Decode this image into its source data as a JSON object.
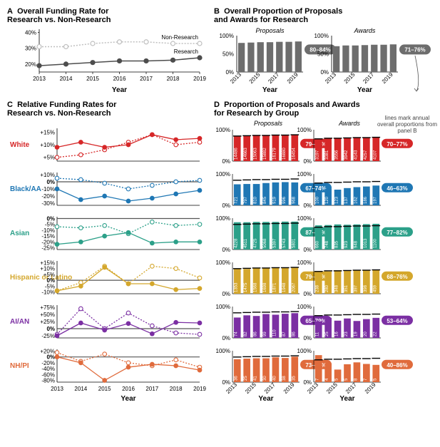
{
  "years": [
    2013,
    2014,
    2015,
    2016,
    2017,
    2018,
    2019
  ],
  "colors": {
    "research": "#4d4d4d",
    "nonresearch": "#bfbfbf",
    "bar_gray": "#6d6d6d",
    "text_gray": "#333333",
    "grid": "#e0e0e0",
    "axis": "#888888",
    "White": "#d62728",
    "BlackAA": "#1f77b4",
    "Asian": "#2ca089",
    "Hispanic": "#d4a72c",
    "AIAN": "#7b2fa3",
    "NHPI": "#e06b3c"
  },
  "panelA": {
    "title": "Overall Funding Rate for\nResearch vs. Non-Research",
    "letter": "A",
    "ylabel_ticks": [
      20,
      30,
      40
    ],
    "research": [
      19,
      20,
      21,
      22,
      22,
      22.5,
      24
    ],
    "nonresearch": [
      31,
      31,
      33,
      34,
      34,
      33,
      33
    ],
    "labels": {
      "research": "Research",
      "nonresearch": "Non-Research"
    },
    "xlabel": "Year"
  },
  "panelB": {
    "title": "Overall Proportion of Proposals\nand Awards for Research",
    "letter": "B",
    "sub": [
      "Proposals",
      "Awards"
    ],
    "proposals": [
      80,
      81,
      82,
      82,
      83,
      83,
      84
    ],
    "awards": [
      71,
      73,
      73,
      74,
      75,
      75,
      76
    ],
    "badges": [
      "80–84%",
      "71–76%"
    ],
    "xlabel": "Year"
  },
  "panelC": {
    "title": "Relative Funding Rates for\nResearch vs. Non-Research",
    "letter": "C",
    "xlabel": "Year",
    "groups": [
      {
        "name": "White",
        "color": "White",
        "ticks": [
          5,
          10,
          15
        ],
        "research": [
          9,
          11,
          9,
          10,
          14,
          12,
          12.5
        ],
        "nonresearch": [
          5,
          6,
          8,
          11,
          14,
          10,
          11
        ]
      },
      {
        "name": "Black/AA",
        "color": "BlackAA",
        "ticks": [
          -30,
          -20,
          -10,
          0,
          10
        ],
        "research": [
          -10,
          -25,
          -20,
          -27,
          -23,
          -17,
          -12
        ],
        "nonresearch": [
          5,
          3,
          -2,
          -10,
          -5,
          0,
          2
        ]
      },
      {
        "name": "Asian",
        "color": "Asian",
        "ticks": [
          -25,
          -20,
          -15,
          -10,
          -5,
          0
        ],
        "research": [
          -22,
          -20,
          -15,
          -12,
          -21,
          -20,
          -20
        ],
        "nonresearch": [
          -7,
          -8,
          -6,
          -13,
          -3,
          -6,
          -5
        ]
      },
      {
        "name": "Hispanic or Latino",
        "color": "Hispanic",
        "ticks": [
          -10,
          -5,
          0,
          5,
          10,
          15
        ],
        "research": [
          -9,
          -5,
          11,
          -3,
          -3,
          -8,
          -7
        ],
        "nonresearch": [
          -9,
          -2,
          12,
          -3,
          12,
          10,
          2
        ]
      },
      {
        "name": "AI/AN",
        "color": "AIAN",
        "ticks": [
          -25,
          0,
          25,
          50,
          75
        ],
        "research": [
          -25,
          20,
          -5,
          18,
          -18,
          22,
          20
        ],
        "nonresearch": [
          -20,
          70,
          0,
          55,
          10,
          -15,
          -20
        ]
      },
      {
        "name": "NH/PI",
        "color": "NHPI",
        "ticks": [
          -80,
          -60,
          -40,
          -20,
          0,
          20
        ],
        "research": [
          0,
          -20,
          -80,
          -35,
          -25,
          -30,
          -45
        ],
        "nonresearch": [
          15,
          -15,
          10,
          -20,
          -30,
          -10,
          -35
        ]
      }
    ]
  },
  "panelD": {
    "title": "Proportion of Proposals and Awards\nfor Research by Group",
    "letter": "D",
    "sub": [
      "Proposals",
      "Awards"
    ],
    "xlabel": "Year",
    "note": "lines mark annual overall proportions from panel B",
    "groups": [
      {
        "color": "White",
        "badges": [
          "79–84%",
          "70–77%"
        ],
        "proposals": {
          "vals": [
            79,
            80,
            81,
            82,
            83,
            83,
            84
          ],
          "n": [
            "14486",
            "14663",
            "15063",
            "15882",
            "16179",
            "16880",
            "16454"
          ]
        },
        "awards": {
          "vals": [
            70,
            72,
            73,
            74,
            75,
            76,
            77
          ],
          "n": [
            "3197",
            "3381",
            "3556",
            "3942",
            "4143",
            "4257",
            "4107"
          ]
        }
      },
      {
        "color": "BlackAA",
        "badges": [
          "67–74%",
          "46–63%"
        ],
        "proposals": {
          "vals": [
            67,
            68,
            68,
            71,
            73,
            74,
            73
          ],
          "n": [
            "721",
            "797",
            "810",
            "845",
            "919",
            "996",
            "968"
          ]
        },
        "awards": {
          "vals": [
            46,
            53,
            50,
            55,
            58,
            60,
            63
          ],
          "n": [
            "100",
            "120",
            "123",
            "137",
            "162",
            "186",
            "197"
          ]
        }
      },
      {
        "color": "Asian",
        "badges": [
          "87–89%",
          "77–82%"
        ],
        "proposals": {
          "vals": [
            87,
            87,
            88,
            88,
            88,
            89,
            89
          ],
          "n": [
            "4228",
            "4511",
            "4725",
            "5068",
            "5397",
            "5743",
            "5801"
          ]
        },
        "awards": {
          "vals": [
            77,
            78,
            80,
            79,
            80,
            81,
            82
          ],
          "n": [
            "660",
            "748",
            "835",
            "923",
            "948",
            "1013",
            "1100"
          ]
        }
      },
      {
        "color": "Hispanic",
        "badges": [
          "79–83%",
          "68–76%"
        ],
        "proposals": {
          "vals": [
            79,
            79,
            81,
            81,
            82,
            83,
            83
          ],
          "n": [
            "1353",
            "1475",
            "1568",
            "1698",
            "1871",
            "1948",
            "2067"
          ]
        },
        "awards": {
          "vals": [
            68,
            71,
            75,
            73,
            74,
            74,
            76
          ],
          "n": [
            "238",
            "280",
            "348",
            "351",
            "397",
            "398",
            "459"
          ]
        }
      },
      {
        "color": "AIAN",
        "badges": [
          "65–79%",
          "53–64%"
        ],
        "proposals": {
          "vals": [
            65,
            72,
            70,
            76,
            74,
            77,
            79
          ],
          "n": [
            "74",
            "82",
            "86",
            "99",
            "110",
            "87",
            "86"
          ]
        },
        "awards": {
          "vals": [
            53,
            64,
            55,
            62,
            54,
            60,
            64
          ],
          "n": [
            "11",
            "25",
            "16",
            "23",
            "19",
            "20",
            "22"
          ]
        }
      },
      {
        "color": "NHPI",
        "badges": [
          "73–81%",
          "40–86%"
        ],
        "proposals": {
          "vals": [
            73,
            75,
            76,
            76,
            79,
            77,
            81
          ],
          "n": [
            "36",
            "25",
            "41",
            "30",
            "40",
            "38",
            "35"
          ]
        },
        "awards": {
          "vals": [
            86,
            60,
            40,
            57,
            63,
            58,
            55
          ],
          "n": [
            "7",
            "4",
            "5",
            "5",
            "8",
            "7",
            "5"
          ]
        }
      }
    ]
  }
}
